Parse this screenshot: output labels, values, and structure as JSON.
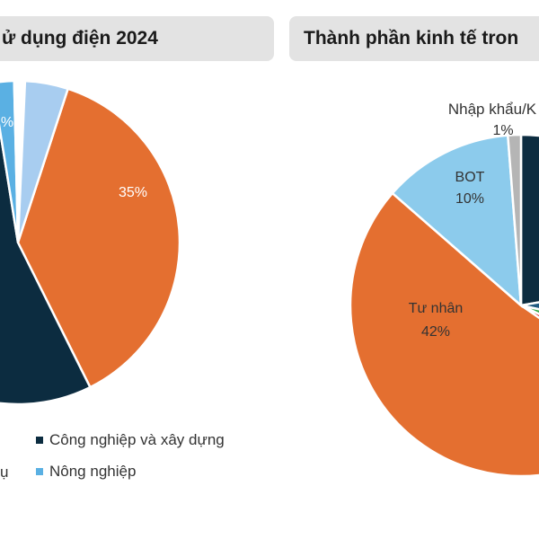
{
  "left_panel": {
    "title": "ử dụng điện 2024",
    "legend": [
      {
        "label": "Công nghiệp và xây dựng",
        "color": "#0c2c40"
      },
      {
        "label": "Nông nghiệp",
        "color": "#5ab0e3"
      },
      {
        "label": "ụ",
        "color": "#ffffff"
      }
    ]
  },
  "right_panel": {
    "title": "Thành phần kinh tế tron"
  },
  "chart_data": [
    {
      "type": "pie",
      "title": "ử dụng điện 2024",
      "slices": [
        {
          "label": "",
          "value": 35,
          "color": "#e46f30",
          "data_label": "35%"
        },
        {
          "label": "Công nghiệp và xây dựng",
          "value": 51,
          "color": "#0c2c40",
          "data_label": ""
        },
        {
          "label": "Nông nghiệp",
          "value": 2,
          "color": "#5ab0e3",
          "data_label": ""
        },
        {
          "label": "",
          "value": 1,
          "color": "#ffffff",
          "data_label": ""
        },
        {
          "label": "",
          "value": 4,
          "color": "#a8cdf0",
          "data_label": "%"
        }
      ]
    },
    {
      "type": "pie",
      "title": "Thành phần kinh tế tron",
      "slices": [
        {
          "label": "",
          "value": 18,
          "color": "#0c2c40",
          "data_label": ""
        },
        {
          "label": "",
          "value": 5,
          "color": "#1f5a80",
          "data_label": ""
        },
        {
          "label": "",
          "value": 3,
          "color": "#3aaa48",
          "data_label": ""
        },
        {
          "label": "",
          "value": 2,
          "color": "#e0201c",
          "data_label": ""
        },
        {
          "label": "Tư nhân",
          "value": 42,
          "color": "#e46f30",
          "data_label": "42%"
        },
        {
          "label": "BOT",
          "value": 10,
          "color": "#8ccbec",
          "data_label": "10%"
        },
        {
          "label": "Nhập khẩu/K",
          "value": 1,
          "color": "#b5b5b5",
          "data_label": "1%"
        }
      ]
    }
  ]
}
